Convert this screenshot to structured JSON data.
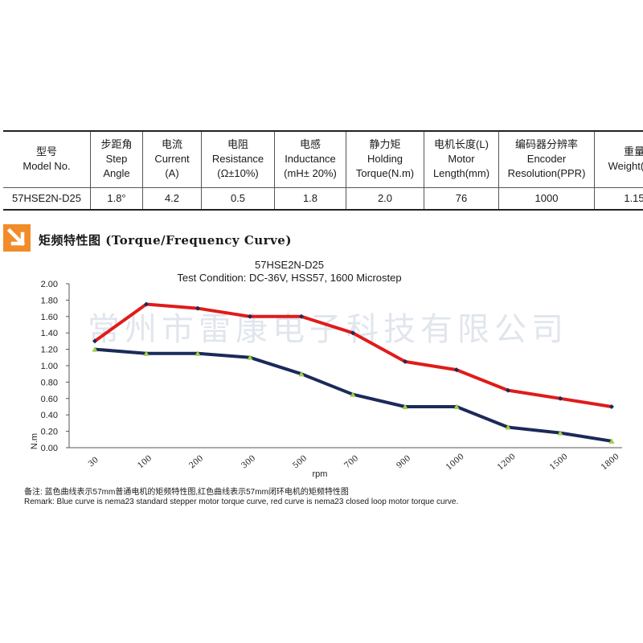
{
  "spec_table": {
    "headers": [
      {
        "zh": "型号",
        "en": [
          "Model No."
        ]
      },
      {
        "zh": "步距角",
        "en": [
          "Step",
          "Angle"
        ]
      },
      {
        "zh": "电流",
        "en": [
          "Current",
          "(A)"
        ]
      },
      {
        "zh": "电阻",
        "en": [
          "Resistance",
          "(Ω±10%)"
        ]
      },
      {
        "zh": "电感",
        "en": [
          "Inductance",
          "(mH± 20%)"
        ]
      },
      {
        "zh": "静力矩",
        "en": [
          "Holding",
          "Torque(N.m)"
        ]
      },
      {
        "zh": "电机长度(L)",
        "en": [
          "Motor",
          "Length(mm)"
        ]
      },
      {
        "zh": "编码器分辨率",
        "en": [
          "Encoder",
          "Resolution(PPR)"
        ]
      },
      {
        "zh": "重量",
        "en": [
          "Weight(Kg)"
        ]
      }
    ],
    "row": [
      "57HSE2N-D25",
      "1.8°",
      "4.2",
      "0.5",
      "1.8",
      "2.0",
      "76",
      "1000",
      "1.15"
    ]
  },
  "section": {
    "title": "矩频特性图 (Torque/Frequency Curve)",
    "icon": "arrow-down-right-icon",
    "accent_color": "#f28c28"
  },
  "chart_data": {
    "type": "line",
    "title": "57HSE2N-D25",
    "subtitle": "Test Condition:  DC-36V,  HSS57,  1600 Microstep",
    "xlabel": "rpm",
    "ylabel": "N.m",
    "categories": [
      "30",
      "100",
      "200",
      "300",
      "500",
      "700",
      "900",
      "1000",
      "1200",
      "1500",
      "1800"
    ],
    "yticks": [
      "0.00",
      "0.20",
      "0.40",
      "0.60",
      "0.80",
      "1.00",
      "1.20",
      "1.40",
      "1.60",
      "1.80",
      "2.00"
    ],
    "ylim": [
      0,
      2.0
    ],
    "grid": false,
    "watermark": "常州市雷康电子科技有限公司",
    "series": [
      {
        "color": "#e01b1b",
        "marker_color": "#1b2a5a",
        "values": [
          1.3,
          1.75,
          1.7,
          1.6,
          1.6,
          1.4,
          1.05,
          0.95,
          0.7,
          0.6,
          0.5
        ]
      },
      {
        "color": "#1b2a5a",
        "marker_color": "#9ccf4a",
        "values": [
          1.2,
          1.15,
          1.15,
          1.1,
          0.9,
          0.65,
          0.5,
          0.5,
          0.25,
          0.18,
          0.08
        ]
      }
    ]
  },
  "remarks": {
    "zh": "备注:   蓝色曲线表示57mm普通电机的矩频特性图,红色曲线表示57mm闭环电机的矩频特性图",
    "en": "Remark: Blue curve is nema23 standard stepper motor torque curve, red curve is nema23 closed loop motor torque curve."
  }
}
